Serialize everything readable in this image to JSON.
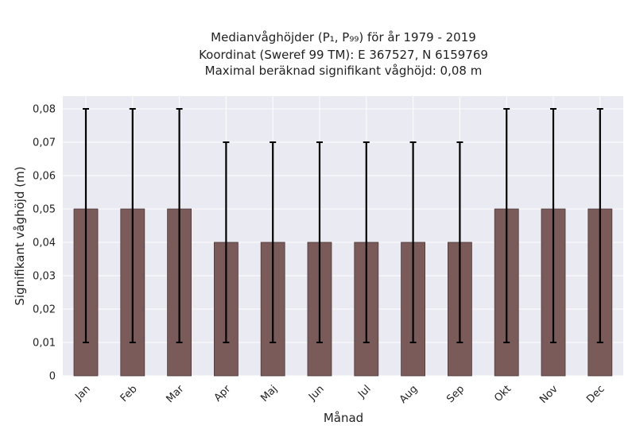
{
  "chart_data": {
    "type": "bar",
    "title_lines": [
      "Medianvåghöjder (P₁, P₉₉) för år 1979 - 2019",
      "Koordinat (Sweref 99 TM): E 367527, N 6159769",
      "Maximal beräknad signifikant våghöjd: 0,08 m"
    ],
    "xlabel": "Månad",
    "ylabel": "Signifikant våghöjd (m)",
    "categories": [
      "Jan",
      "Feb",
      "Mar",
      "Apr",
      "Maj",
      "Jun",
      "Jul",
      "Aug",
      "Sep",
      "Okt",
      "Nov",
      "Dec"
    ],
    "values": [
      0.05,
      0.05,
      0.05,
      0.04,
      0.04,
      0.04,
      0.04,
      0.04,
      0.04,
      0.05,
      0.05,
      0.05
    ],
    "error_low": [
      0.01,
      0.01,
      0.01,
      0.01,
      0.01,
      0.01,
      0.01,
      0.01,
      0.01,
      0.01,
      0.01,
      0.01
    ],
    "error_high": [
      0.08,
      0.08,
      0.08,
      0.07,
      0.07,
      0.07,
      0.07,
      0.07,
      0.07,
      0.08,
      0.08,
      0.08
    ],
    "ylim": [
      0,
      0.084
    ],
    "yticks": [
      0,
      0.01,
      0.02,
      0.03,
      0.04,
      0.05,
      0.06,
      0.07,
      0.08
    ],
    "ytick_labels": [
      "0",
      "0,01",
      "0,02",
      "0,03",
      "0,04",
      "0,05",
      "0,06",
      "0,07",
      "0,08"
    ],
    "grid": true,
    "colors": {
      "bar": "#7b5a5a",
      "bar_edge": "#4a3838",
      "error": "#000000",
      "plot_bg": "#eaeaf2",
      "grid": "#ffffff"
    }
  }
}
